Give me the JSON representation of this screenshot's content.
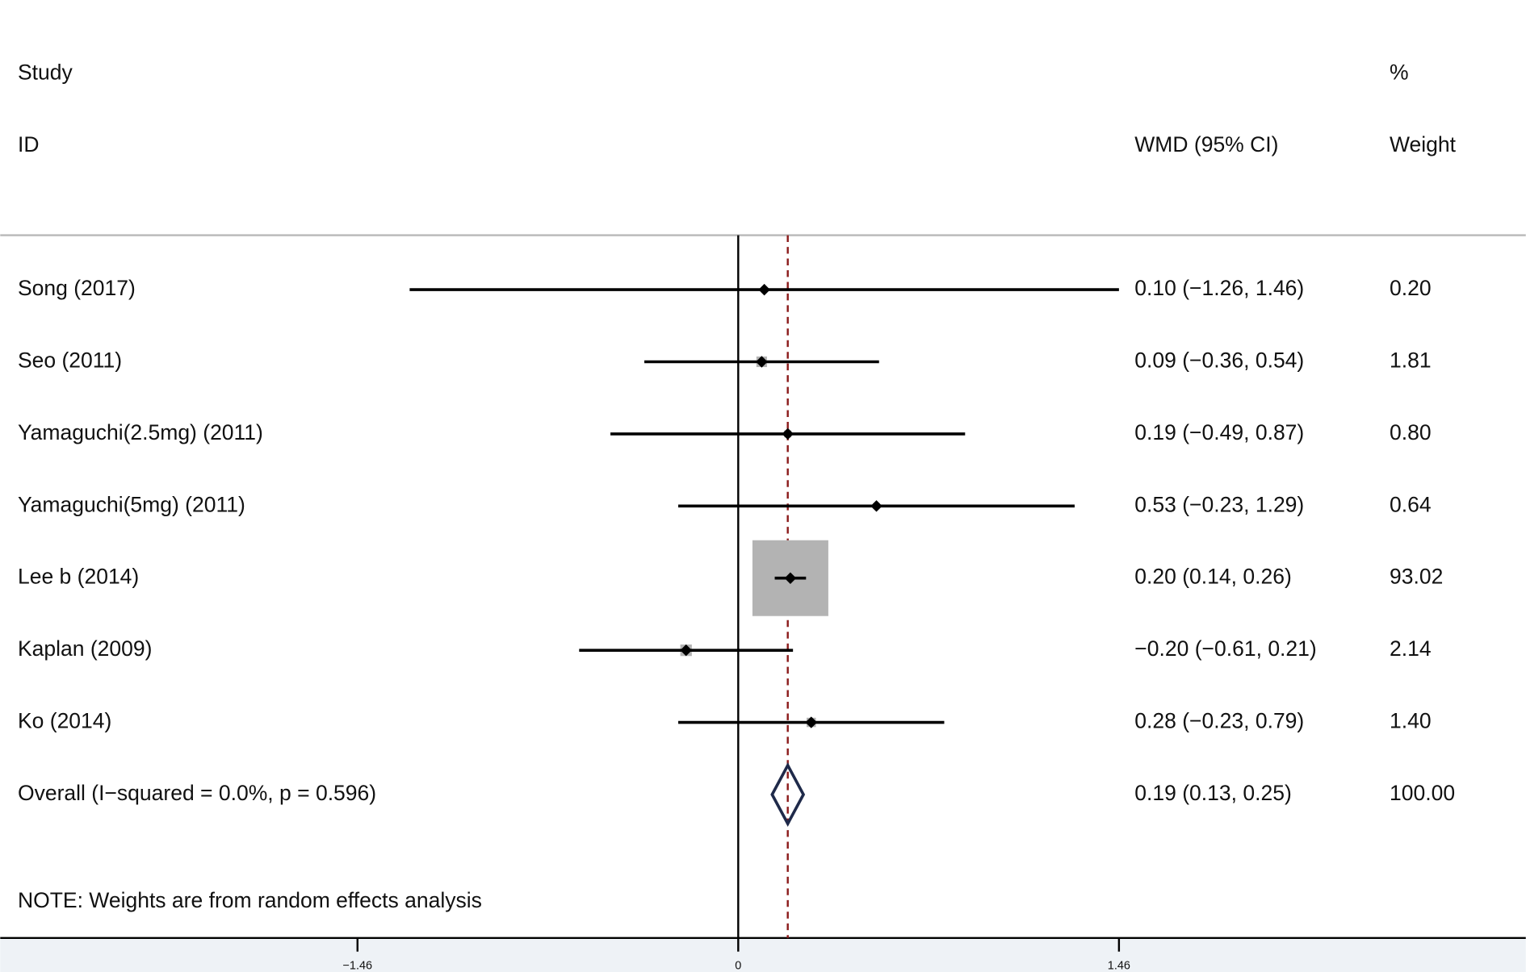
{
  "chart_data": {
    "type": "forest",
    "headers": {
      "study": "Study",
      "id": "ID",
      "effect": "WMD (95% CI)",
      "pct": "%",
      "weight": "Weight"
    },
    "studies": [
      "Song  (2017)",
      "Seo (2011)",
      "Yamaguchi(2.5mg) (2011)",
      "Yamaguchi(5mg) (2011)",
      "Lee b (2014)",
      "Kaplan (2009)",
      "Ko (2014)"
    ],
    "estimates": [
      0.1,
      0.09,
      0.19,
      0.53,
      0.2,
      -0.2,
      0.28
    ],
    "lower": [
      -1.26,
      -0.36,
      -0.49,
      -0.23,
      0.14,
      -0.61,
      -0.23
    ],
    "upper": [
      1.46,
      0.54,
      0.87,
      1.29,
      0.26,
      0.21,
      0.79
    ],
    "ci_labels": [
      "0.10 (−1.26, 1.46)",
      "0.09 (−0.36, 0.54)",
      "0.19 (−0.49, 0.87)",
      "0.53 (−0.23, 1.29)",
      "0.20 (0.14, 0.26)",
      "−0.20 (−0.61, 0.21)",
      "0.28 (−0.23, 0.79)"
    ],
    "weights": [
      0.2,
      1.81,
      0.8,
      0.64,
      93.02,
      2.14,
      1.4
    ],
    "weight_labels": [
      "0.20",
      "1.81",
      "0.80",
      "0.64",
      "93.02",
      "2.14",
      "1.40"
    ],
    "overall": {
      "label": "Overall  (I−squared = 0.0%, p = 0.596)",
      "estimate": 0.19,
      "lower": 0.13,
      "upper": 0.25,
      "ci_label": "0.19 (0.13, 0.25)",
      "weight": 100,
      "weight_label": "100.00"
    },
    "note": "NOTE: Weights are from random effects analysis",
    "xlim": [
      -2.83,
      3.02
    ],
    "xticks": [
      {
        "value": -1.46,
        "label": "−1.46"
      },
      0,
      1.46
    ],
    "marker_color": "#b3b3b3",
    "line_color": "#000000",
    "ref_color": "#8b1a1a",
    "diamond_color": "#1f2a4a"
  }
}
